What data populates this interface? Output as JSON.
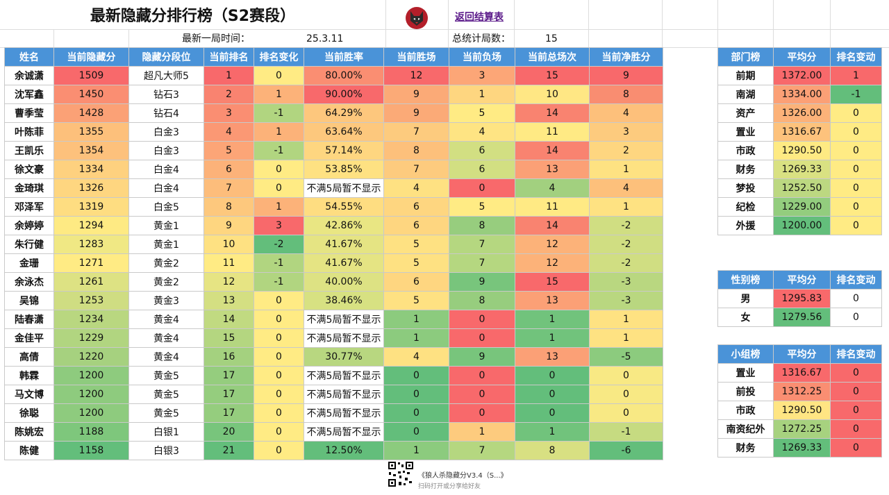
{
  "header": {
    "title": "最新隐藏分排行榜（S2赛段）",
    "back_link": "返回结算表",
    "last_game_label": "最新一局时间：",
    "last_game_value": "25.3.11",
    "total_games_label": "总统计局数：",
    "total_games_value": "15"
  },
  "main_table": {
    "columns": [
      "姓名",
      "当前隐藏分",
      "隐藏分段位",
      "当前排名",
      "排名变化",
      "当前胜率",
      "当前胜场",
      "当前负场",
      "当前总场次",
      "当前净胜分"
    ],
    "rows": [
      [
        "余诚潇",
        "1509",
        "超凡大师5",
        "1",
        "0",
        "80.00%",
        "12",
        "3",
        "15",
        "9"
      ],
      [
        "沈军鑫",
        "1450",
        "钻石3",
        "2",
        "1",
        "90.00%",
        "9",
        "1",
        "10",
        "8"
      ],
      [
        "曹季莹",
        "1428",
        "钻石4",
        "3",
        "-1",
        "64.29%",
        "9",
        "5",
        "14",
        "4"
      ],
      [
        "叶陈菲",
        "1355",
        "白金3",
        "4",
        "1",
        "63.64%",
        "7",
        "4",
        "11",
        "3"
      ],
      [
        "王凯乐",
        "1354",
        "白金3",
        "5",
        "-1",
        "57.14%",
        "8",
        "6",
        "14",
        "2"
      ],
      [
        "徐文豪",
        "1334",
        "白金4",
        "6",
        "0",
        "53.85%",
        "7",
        "6",
        "13",
        "1"
      ],
      [
        "金琦琪",
        "1326",
        "白金4",
        "7",
        "0",
        "不满5局暂不显示",
        "4",
        "0",
        "4",
        "4"
      ],
      [
        "邓泽军",
        "1319",
        "白金5",
        "8",
        "1",
        "54.55%",
        "6",
        "5",
        "11",
        "1"
      ],
      [
        "余婷婷",
        "1294",
        "黄金1",
        "9",
        "3",
        "42.86%",
        "6",
        "8",
        "14",
        "-2"
      ],
      [
        "朱行健",
        "1283",
        "黄金1",
        "10",
        "-2",
        "41.67%",
        "5",
        "7",
        "12",
        "-2"
      ],
      [
        "金珊",
        "1271",
        "黄金2",
        "11",
        "-1",
        "41.67%",
        "5",
        "7",
        "12",
        "-2"
      ],
      [
        "余泳杰",
        "1261",
        "黄金2",
        "12",
        "-1",
        "40.00%",
        "6",
        "9",
        "15",
        "-3"
      ],
      [
        "吴锦",
        "1253",
        "黄金3",
        "13",
        "0",
        "38.46%",
        "5",
        "8",
        "13",
        "-3"
      ],
      [
        "陆春潇",
        "1234",
        "黄金4",
        "14",
        "0",
        "不满5局暂不显示",
        "1",
        "0",
        "1",
        "1"
      ],
      [
        "金佳平",
        "1229",
        "黄金4",
        "15",
        "0",
        "不满5局暂不显示",
        "1",
        "0",
        "1",
        "1"
      ],
      [
        "高倩",
        "1220",
        "黄金4",
        "16",
        "0",
        "30.77%",
        "4",
        "9",
        "13",
        "-5"
      ],
      [
        "韩霖",
        "1200",
        "黄金5",
        "17",
        "0",
        "不满5局暂不显示",
        "0",
        "0",
        "0",
        "0"
      ],
      [
        "马文博",
        "1200",
        "黄金5",
        "17",
        "0",
        "不满5局暂不显示",
        "0",
        "0",
        "0",
        "0"
      ],
      [
        "徐聪",
        "1200",
        "黄金5",
        "17",
        "0",
        "不满5局暂不显示",
        "0",
        "0",
        "0",
        "0"
      ],
      [
        "陈姚宏",
        "1188",
        "白银1",
        "20",
        "0",
        "不满5局暂不显示",
        "0",
        "1",
        "1",
        "-1"
      ],
      [
        "陈健",
        "1158",
        "白银3",
        "21",
        "0",
        "12.50%",
        "1",
        "7",
        "8",
        "-6"
      ]
    ],
    "colors": [
      [
        "#ffffff",
        "#f8696b",
        "#ffffff",
        "#f8696b",
        "#ffeb84",
        "#fa8e72",
        "#f8696b",
        "#fca677",
        "#f8696b",
        "#f8696b"
      ],
      [
        "#ffffff",
        "#fa8e72",
        "#ffffff",
        "#f98370",
        "#fcb279",
        "#f8696b",
        "#fbaa77",
        "#fed680",
        "#ffe784",
        "#f98d71"
      ],
      [
        "#ffffff",
        "#fba176",
        "#ffffff",
        "#fa8e72",
        "#b1d580",
        "#fdc77d",
        "#fbaa77",
        "#ffeb84",
        "#f98370",
        "#fdc07b"
      ],
      [
        "#ffffff",
        "#fdc07b",
        "#ffffff",
        "#fb9874",
        "#fcb279",
        "#fdc87d",
        "#fdcb7e",
        "#fee483",
        "#ffea84",
        "#fdcb7e"
      ],
      [
        "#ffffff",
        "#fdc17c",
        "#ffffff",
        "#fca577",
        "#b1d580",
        "#fed680",
        "#fdc07b",
        "#d2df82",
        "#f98370",
        "#fed680"
      ],
      [
        "#ffffff",
        "#fed17f",
        "#ffffff",
        "#fcb279",
        "#ffeb84",
        "#fee182",
        "#fdcb7e",
        "#d2df82",
        "#fba076",
        "#fee282"
      ],
      [
        "#ffffff",
        "#fed680",
        "#ffffff",
        "#fdbd7b",
        "#ffeb84",
        "#ffffff",
        "#fee182",
        "#f8696b",
        "#a2d07f",
        "#fdc07b"
      ],
      [
        "#ffffff",
        "#fedd81",
        "#ffffff",
        "#fdc87d",
        "#fcb279",
        "#fedd81",
        "#fed680",
        "#ffeb84",
        "#ffea84",
        "#fee282"
      ],
      [
        "#ffffff",
        "#feea83",
        "#ffffff",
        "#fed680",
        "#f8696b",
        "#e9e683",
        "#fed680",
        "#97cd7e",
        "#f98370",
        "#d0de82"
      ],
      [
        "#ffffff",
        "#f0e884",
        "#ffffff",
        "#fee182",
        "#63be7b",
        "#e5e483",
        "#fee182",
        "#b5d780",
        "#fcb279",
        "#d0de82"
      ],
      [
        "#ffffff",
        "#ffeb84",
        "#ffffff",
        "#ffeb84",
        "#b1d580",
        "#e5e483",
        "#fee182",
        "#b5d780",
        "#fcb279",
        "#d0de82"
      ],
      [
        "#ffffff",
        "#dde283",
        "#ffffff",
        "#e6e483",
        "#b1d580",
        "#dde283",
        "#fed680",
        "#78c57c",
        "#f8696b",
        "#b9d780"
      ],
      [
        "#ffffff",
        "#cfdd82",
        "#ffffff",
        "#d4df82",
        "#ffeb84",
        "#d7e182",
        "#fee182",
        "#97cd7e",
        "#fba076",
        "#b9d780"
      ],
      [
        "#ffffff",
        "#b9d780",
        "#ffffff",
        "#c1da81",
        "#ffeb84",
        "#ffffff",
        "#8ccb7e",
        "#f8696b",
        "#71c37c",
        "#fee282"
      ],
      [
        "#ffffff",
        "#b1d580",
        "#ffffff",
        "#b4d680",
        "#ffeb84",
        "#ffffff",
        "#8ccb7e",
        "#f8696b",
        "#71c37c",
        "#fee282"
      ],
      [
        "#ffffff",
        "#a6d17f",
        "#ffffff",
        "#a4d17f",
        "#ffeb84",
        "#b8d780",
        "#fee182",
        "#78c57c",
        "#fba076",
        "#8ccb7e"
      ],
      [
        "#ffffff",
        "#8ecb7e",
        "#ffffff",
        "#95cd7e",
        "#ffeb84",
        "#ffffff",
        "#63be7b",
        "#f8696b",
        "#63be7b",
        "#f8e984"
      ],
      [
        "#ffffff",
        "#8ecb7e",
        "#ffffff",
        "#95cd7e",
        "#ffeb84",
        "#ffffff",
        "#63be7b",
        "#f8696b",
        "#63be7b",
        "#f8e984"
      ],
      [
        "#ffffff",
        "#8ecb7e",
        "#ffffff",
        "#95cd7e",
        "#ffeb84",
        "#ffffff",
        "#63be7b",
        "#f8696b",
        "#63be7b",
        "#f8e984"
      ],
      [
        "#ffffff",
        "#7ec77c",
        "#ffffff",
        "#78c57c",
        "#ffeb84",
        "#ffffff",
        "#63be7b",
        "#fdcb7e",
        "#71c37c",
        "#c6db81"
      ],
      [
        "#ffffff",
        "#63be7b",
        "#ffffff",
        "#63be7b",
        "#ffeb84",
        "#63be7b",
        "#8ccb7e",
        "#b5d780",
        "#d8e082",
        "#63be7b"
      ]
    ]
  },
  "dept_table": {
    "columns": [
      "部门榜",
      "平均分",
      "排名变动"
    ],
    "rows": [
      [
        "前期",
        "1372.00",
        "1"
      ],
      [
        "南湖",
        "1334.00",
        "-1"
      ],
      [
        "资产",
        "1326.00",
        "0"
      ],
      [
        "置业",
        "1316.67",
        "0"
      ],
      [
        "市政",
        "1290.50",
        "0"
      ],
      [
        "财务",
        "1269.33",
        "0"
      ],
      [
        "梦投",
        "1252.50",
        "0"
      ],
      [
        "纪检",
        "1229.00",
        "0"
      ],
      [
        "外援",
        "1200.00",
        "0"
      ]
    ],
    "colors": [
      [
        "#ffffff",
        "#f8696b",
        "#f8696b"
      ],
      [
        "#ffffff",
        "#fba076",
        "#63be7b"
      ],
      [
        "#ffffff",
        "#fcb279",
        "#ffeb84"
      ],
      [
        "#ffffff",
        "#fdc27c",
        "#ffeb84"
      ],
      [
        "#ffffff",
        "#feea83",
        "#ffeb84"
      ],
      [
        "#ffffff",
        "#d9e182",
        "#ffeb84"
      ],
      [
        "#ffffff",
        "#bcd881",
        "#ffeb84"
      ],
      [
        "#ffffff",
        "#93cd7e",
        "#ffeb84"
      ],
      [
        "#ffffff",
        "#63be7b",
        "#ffeb84"
      ]
    ]
  },
  "gender_table": {
    "columns": [
      "性别榜",
      "平均分",
      "排名变动"
    ],
    "rows": [
      [
        "男",
        "1295.83",
        "0"
      ],
      [
        "女",
        "1279.56",
        "0"
      ]
    ],
    "colors": [
      [
        "#ffffff",
        "#f8696b",
        "#ffffff"
      ],
      [
        "#ffffff",
        "#63be7b",
        "#ffffff"
      ]
    ]
  },
  "group_table": {
    "columns": [
      "小组榜",
      "平均分",
      "排名变动"
    ],
    "rows": [
      [
        "置业",
        "1316.67",
        "0"
      ],
      [
        "前投",
        "1312.25",
        "0"
      ],
      [
        "市政",
        "1290.50",
        "0"
      ],
      [
        "南资纪外",
        "1272.25",
        "0"
      ],
      [
        "财务",
        "1269.33",
        "0"
      ]
    ],
    "colors": [
      [
        "#ffffff",
        "#f8696b",
        "#f8696b"
      ],
      [
        "#ffffff",
        "#fa8e72",
        "#f8696b"
      ],
      [
        "#ffffff",
        "#ffe583",
        "#f8696b"
      ],
      [
        "#ffffff",
        "#a7d27f",
        "#f8696b"
      ],
      [
        "#ffffff",
        "#63be7b",
        "#f8696b"
      ]
    ]
  },
  "footer": {
    "line1": "《狼人杀隐藏分V3.4（S...》",
    "line2": "扫码打开或分享给好友",
    "qr_icon": "qr-code-icon"
  },
  "logo_icon": "wolf-avatar-icon"
}
